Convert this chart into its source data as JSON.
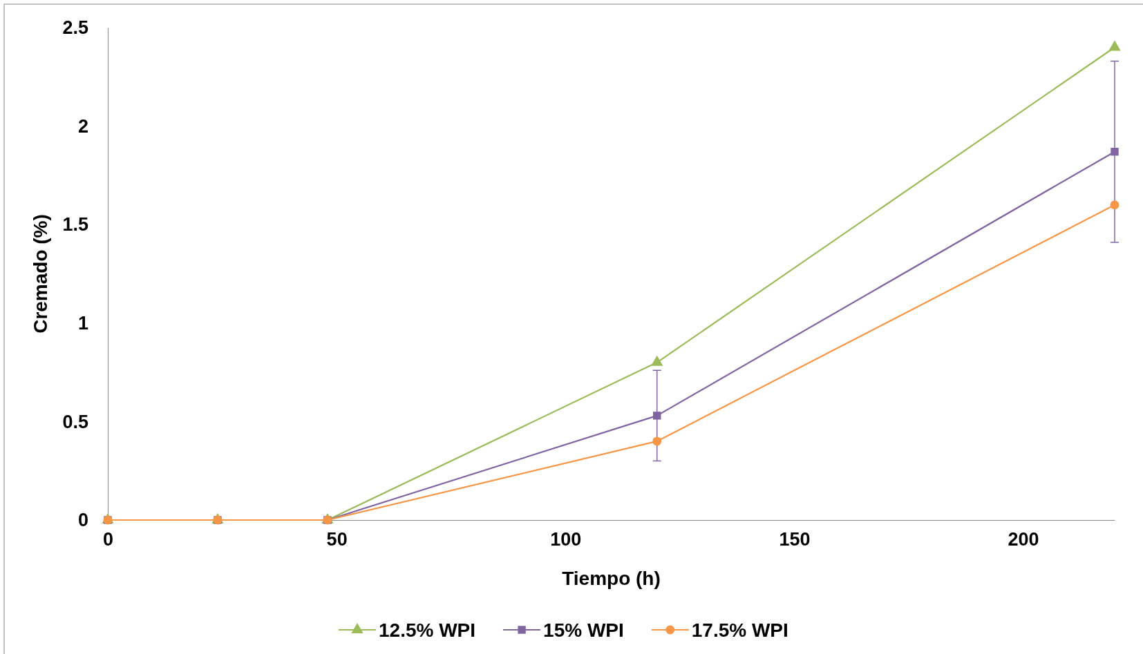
{
  "chart_data": {
    "type": "line",
    "xlabel": "Tiempo (h)",
    "ylabel": "Cremado (%)",
    "x": [
      0,
      24,
      48,
      120,
      220
    ],
    "xlim": [
      0,
      220
    ],
    "xticks": [
      0,
      50,
      100,
      150,
      200
    ],
    "ylim": [
      0,
      2.5
    ],
    "yticks": [
      0,
      0.5,
      1,
      1.5,
      2,
      2.5
    ],
    "grid": false,
    "legend": "bottom",
    "line_style": "solid",
    "series": [
      {
        "name": "12.5% WPI",
        "color": "#9bbb59",
        "marker": "triangle",
        "values": [
          0,
          0,
          0,
          0.8,
          2.4
        ]
      },
      {
        "name": "15% WPI",
        "color": "#8064a2",
        "marker": "square",
        "values": [
          0,
          0,
          0,
          0.53,
          1.87
        ],
        "errors": [
          null,
          null,
          null,
          0.23,
          0.46
        ]
      },
      {
        "name": "17.5% WPI",
        "color": "#f79646",
        "marker": "circle",
        "values": [
          0,
          0,
          0,
          0.4,
          1.6
        ]
      }
    ]
  }
}
